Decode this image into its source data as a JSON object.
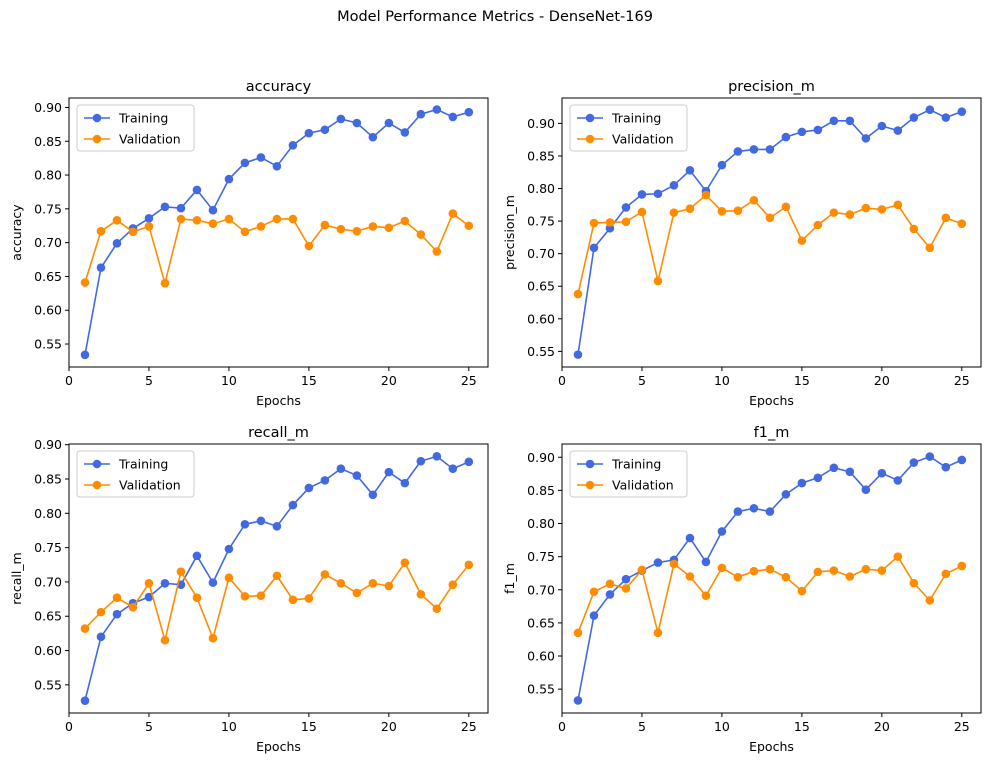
{
  "figure_title": "Model Performance Metrics - DenseNet-169",
  "colors": {
    "training": "#4169E1",
    "validation": "#FF8C00"
  },
  "chart_data": [
    {
      "type": "line",
      "title": "accuracy",
      "xlabel": "Epochs",
      "ylabel": "accuracy",
      "xlim": [
        0,
        26.2
      ],
      "ylim": [
        0.516,
        0.914
      ],
      "xticks": [
        0,
        5,
        10,
        15,
        20,
        25
      ],
      "yticks": [
        0.55,
        0.6,
        0.65,
        0.7,
        0.75,
        0.8,
        0.85,
        0.9
      ],
      "legend": "top-left",
      "x": [
        1,
        2,
        3,
        4,
        5,
        6,
        7,
        8,
        9,
        10,
        11,
        12,
        13,
        14,
        15,
        16,
        17,
        18,
        19,
        20,
        21,
        22,
        23,
        24,
        25
      ],
      "series": [
        {
          "name": "Training",
          "values": [
            0.534,
            0.663,
            0.699,
            0.721,
            0.736,
            0.753,
            0.751,
            0.778,
            0.748,
            0.794,
            0.818,
            0.826,
            0.813,
            0.844,
            0.862,
            0.867,
            0.883,
            0.877,
            0.856,
            0.877,
            0.863,
            0.89,
            0.897,
            0.886,
            0.893
          ]
        },
        {
          "name": "Validation",
          "values": [
            0.641,
            0.717,
            0.733,
            0.716,
            0.724,
            0.64,
            0.735,
            0.733,
            0.728,
            0.735,
            0.716,
            0.724,
            0.735,
            0.735,
            0.695,
            0.726,
            0.72,
            0.717,
            0.724,
            0.722,
            0.732,
            0.712,
            0.687,
            0.743,
            0.725
          ]
        }
      ]
    },
    {
      "type": "line",
      "title": "precision_m",
      "xlabel": "Epochs",
      "ylabel": "precision_m",
      "xlim": [
        0,
        26.2
      ],
      "ylim": [
        0.526,
        0.939
      ],
      "xticks": [
        0,
        5,
        10,
        15,
        20,
        25
      ],
      "yticks": [
        0.55,
        0.6,
        0.65,
        0.7,
        0.75,
        0.8,
        0.85,
        0.9
      ],
      "legend": "top-left",
      "x": [
        1,
        2,
        3,
        4,
        5,
        6,
        7,
        8,
        9,
        10,
        11,
        12,
        13,
        14,
        15,
        16,
        17,
        18,
        19,
        20,
        21,
        22,
        23,
        24,
        25
      ],
      "series": [
        {
          "name": "Training",
          "values": [
            0.545,
            0.709,
            0.739,
            0.771,
            0.791,
            0.792,
            0.805,
            0.828,
            0.796,
            0.836,
            0.857,
            0.86,
            0.86,
            0.879,
            0.887,
            0.89,
            0.904,
            0.904,
            0.877,
            0.896,
            0.889,
            0.909,
            0.921,
            0.909,
            0.918
          ]
        },
        {
          "name": "Validation",
          "values": [
            0.638,
            0.747,
            0.748,
            0.749,
            0.764,
            0.658,
            0.763,
            0.769,
            0.79,
            0.765,
            0.766,
            0.782,
            0.755,
            0.772,
            0.72,
            0.744,
            0.763,
            0.76,
            0.77,
            0.768,
            0.775,
            0.738,
            0.709,
            0.755,
            0.746
          ]
        }
      ]
    },
    {
      "type": "line",
      "title": "recall_m",
      "xlabel": "Epochs",
      "ylabel": "recall_m",
      "xlim": [
        0,
        26.2
      ],
      "ylim": [
        0.509,
        0.901
      ],
      "xticks": [
        0,
        5,
        10,
        15,
        20,
        25
      ],
      "yticks": [
        0.55,
        0.6,
        0.65,
        0.7,
        0.75,
        0.8,
        0.85,
        0.9
      ],
      "legend": "top-left",
      "x": [
        1,
        2,
        3,
        4,
        5,
        6,
        7,
        8,
        9,
        10,
        11,
        12,
        13,
        14,
        15,
        16,
        17,
        18,
        19,
        20,
        21,
        22,
        23,
        24,
        25
      ],
      "series": [
        {
          "name": "Training",
          "values": [
            0.527,
            0.62,
            0.653,
            0.669,
            0.678,
            0.698,
            0.696,
            0.738,
            0.699,
            0.748,
            0.784,
            0.789,
            0.781,
            0.812,
            0.837,
            0.848,
            0.865,
            0.855,
            0.827,
            0.86,
            0.844,
            0.876,
            0.883,
            0.865,
            0.875
          ]
        },
        {
          "name": "Validation",
          "values": [
            0.632,
            0.656,
            0.677,
            0.663,
            0.698,
            0.615,
            0.715,
            0.677,
            0.618,
            0.706,
            0.679,
            0.68,
            0.709,
            0.674,
            0.676,
            0.711,
            0.698,
            0.684,
            0.698,
            0.694,
            0.728,
            0.682,
            0.661,
            0.696,
            0.725
          ]
        }
      ]
    },
    {
      "type": "line",
      "title": "f1_m",
      "xlabel": "Epochs",
      "ylabel": "f1_m",
      "xlim": [
        0,
        26.2
      ],
      "ylim": [
        0.514,
        0.92
      ],
      "xticks": [
        0,
        5,
        10,
        15,
        20,
        25
      ],
      "yticks": [
        0.55,
        0.6,
        0.65,
        0.7,
        0.75,
        0.8,
        0.85,
        0.9
      ],
      "legend": "top-left",
      "x": [
        1,
        2,
        3,
        4,
        5,
        6,
        7,
        8,
        9,
        10,
        11,
        12,
        13,
        14,
        15,
        16,
        17,
        18,
        19,
        20,
        21,
        22,
        23,
        24,
        25
      ],
      "series": [
        {
          "name": "Training",
          "values": [
            0.533,
            0.661,
            0.693,
            0.716,
            0.729,
            0.741,
            0.745,
            0.778,
            0.742,
            0.788,
            0.818,
            0.823,
            0.818,
            0.844,
            0.861,
            0.869,
            0.884,
            0.878,
            0.851,
            0.876,
            0.865,
            0.892,
            0.901,
            0.885,
            0.896
          ]
        },
        {
          "name": "Validation",
          "values": [
            0.635,
            0.697,
            0.709,
            0.702,
            0.73,
            0.635,
            0.739,
            0.72,
            0.691,
            0.733,
            0.719,
            0.728,
            0.731,
            0.719,
            0.698,
            0.727,
            0.729,
            0.72,
            0.731,
            0.729,
            0.75,
            0.71,
            0.684,
            0.724,
            0.736
          ]
        }
      ]
    }
  ]
}
